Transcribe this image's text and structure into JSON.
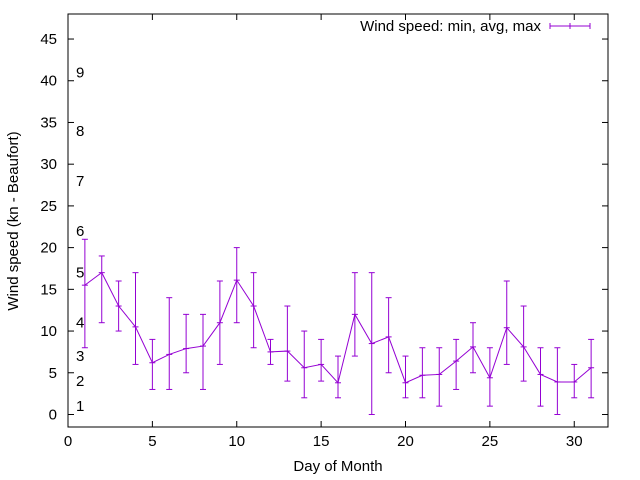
{
  "chart_data": {
    "type": "line",
    "title": "",
    "xlabel": "Day of Month",
    "ylabel": "Wind speed (kn - Beaufort)",
    "xlim": [
      0,
      32
    ],
    "ylim": [
      -1.5,
      48
    ],
    "grid": false,
    "legend_placement": "top-right",
    "x_ticks": [
      0,
      5,
      10,
      15,
      20,
      25,
      30
    ],
    "y_ticks": [
      0,
      5,
      10,
      15,
      20,
      25,
      30,
      35,
      40,
      45
    ],
    "beaufort_labels": [
      {
        "text": "1",
        "y": 1
      },
      {
        "text": "2",
        "y": 4
      },
      {
        "text": "3",
        "y": 7
      },
      {
        "text": "4",
        "y": 11
      },
      {
        "text": "5",
        "y": 17
      },
      {
        "text": "6",
        "y": 22
      },
      {
        "text": "7",
        "y": 28
      },
      {
        "text": "8",
        "y": 34
      },
      {
        "text": "9",
        "y": 41
      }
    ],
    "series": [
      {
        "name": "Wind speed: min, avg, max",
        "color": "#9400d3",
        "x": [
          1,
          2,
          3,
          4,
          5,
          6,
          7,
          8,
          9,
          10,
          11,
          12,
          13,
          14,
          15,
          16,
          17,
          18,
          19,
          20,
          21,
          22,
          23,
          24,
          25,
          26,
          27,
          28,
          29,
          30,
          31
        ],
        "avg": [
          15.5,
          17,
          13,
          10.5,
          6.2,
          7.2,
          7.9,
          8.2,
          11,
          16.1,
          13,
          7.5,
          7.6,
          5.6,
          6,
          3.8,
          12,
          8.5,
          9.3,
          3.8,
          4.7,
          4.8,
          6.4,
          8.1,
          4.4,
          10.4,
          8.1,
          4.8,
          3.9,
          3.9,
          5.6
        ],
        "min": [
          8,
          11,
          10,
          6,
          3,
          3,
          5,
          3,
          6,
          11,
          8,
          6,
          4,
          2,
          4,
          2,
          7,
          0,
          5,
          2,
          2,
          1,
          3,
          5,
          1,
          6,
          4,
          1,
          0,
          2,
          2
        ],
        "max": [
          21,
          19,
          16,
          17,
          9,
          14,
          12,
          12,
          16,
          20,
          17,
          9,
          13,
          10,
          9,
          7,
          17,
          17,
          14,
          7,
          8,
          8,
          9,
          11,
          8,
          16,
          13,
          8,
          8,
          6,
          9
        ]
      }
    ]
  }
}
